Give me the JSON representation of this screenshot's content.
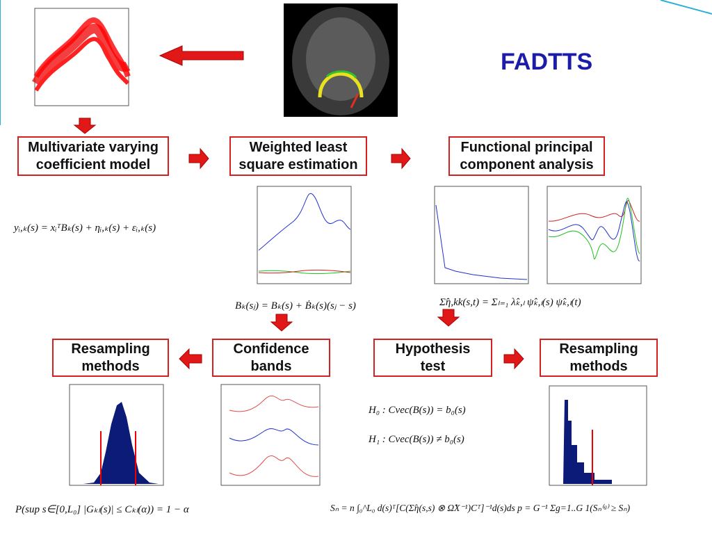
{
  "title": "FADTTS",
  "boxes": [
    {
      "lines": [
        "Multivariate varying",
        "coefficient model"
      ]
    },
    {
      "lines": [
        "Weighted least",
        "square estimation"
      ]
    },
    {
      "lines": [
        "Functional principal",
        "component analysis"
      ]
    },
    {
      "lines": [
        "Resampling",
        "methods"
      ]
    },
    {
      "lines": [
        "Confidence",
        "bands"
      ]
    },
    {
      "lines": [
        "Hypothesis",
        "test"
      ]
    },
    {
      "lines": [
        "Resampling",
        "methods"
      ]
    }
  ],
  "formulas": [
    "yᵢ,ₖ(s) = xᵢᵀBₖ(s) + ηᵢ,ₖ(s) + εᵢ,ₖ(s)",
    "Bₖ(sⱼ) = Bₖ(s) + Ḃₖ(s)(sⱼ − s)",
    "Σ̂η,kk(s,t) = Σₗ₌₁ λ̂ₖ,ₗ ψ̂ₖ,ₗ(s) ψ̂ₖ,ₗ(t)",
    "H₀ : Cvec(B(s)) = b₀(s)",
    "H₁ : Cvec(B(s)) ≠ b₀(s)",
    "P(sup s∈[0,L₀] |Gₖₗ(s)| ≤ Cₖₗ(α)) = 1 − α",
    "Sₙ = n ∫₀^L₀ d(s)ᵀ[C(Σ̂η(s,s) ⊗ Ω̂X⁻¹)Cᵀ]⁻¹d(s)ds   p = G⁻¹ Σg=1..G 1(Sₙ⁽ᵍ⁾ ≥ Sₙ)"
  ]
}
